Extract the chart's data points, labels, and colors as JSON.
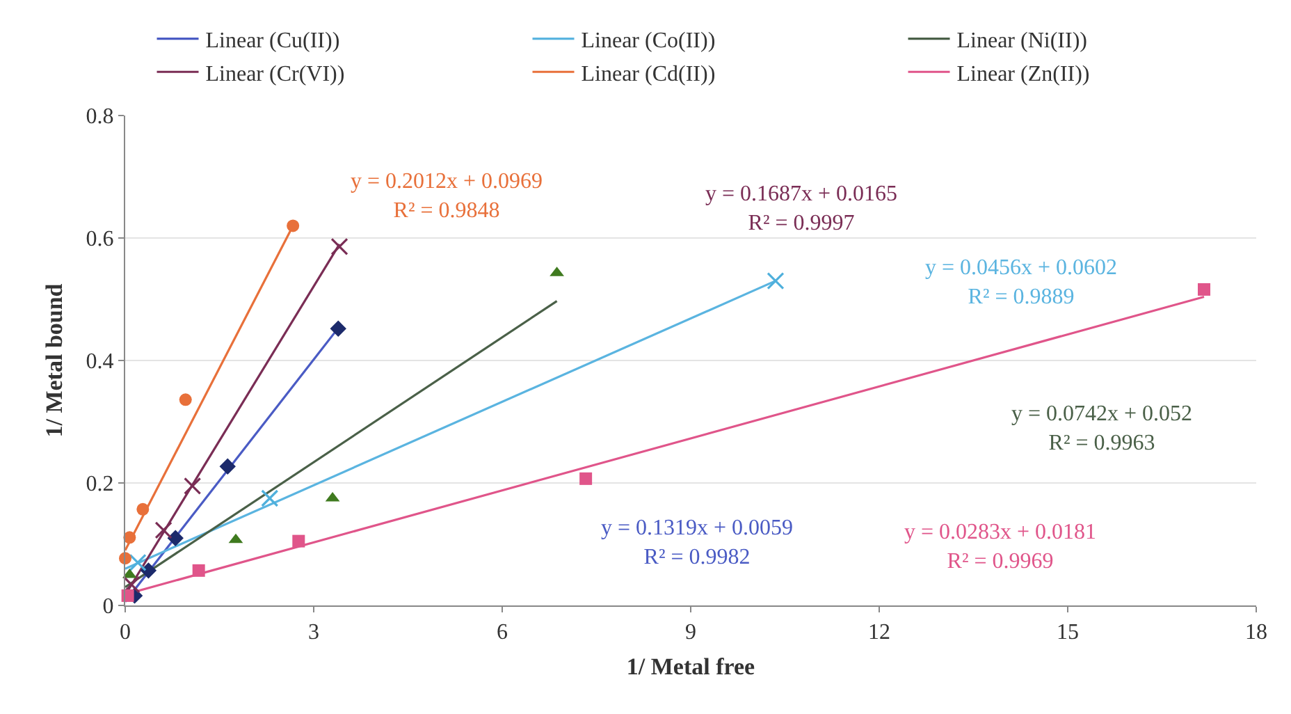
{
  "chart_data": {
    "type": "scatter",
    "xlabel": "1/ Metal free",
    "ylabel": "1/ Metal bound",
    "xlim": [
      0,
      18
    ],
    "xticks": [
      0,
      3,
      6,
      9,
      12,
      15,
      18
    ],
    "ylim": [
      0,
      0.8
    ],
    "yticks": [
      0,
      0.2,
      0.4,
      0.6,
      0.8
    ],
    "grid": "y",
    "legend": "top",
    "series": [
      {
        "color": "#1c2a6b",
        "marker": "diamond",
        "x": [
          0.15,
          0.37,
          0.8,
          1.63,
          3.39
        ],
        "values": [
          0.016,
          0.057,
          0.11,
          0.227,
          0.452
        ]
      },
      {
        "color": "#4fb0dc",
        "marker": "cross",
        "x": [
          0.2,
          2.3,
          10.35
        ],
        "values": [
          0.07,
          0.175,
          0.53
        ]
      },
      {
        "color": "#3f7a1f",
        "marker": "triangle",
        "x": [
          0.07,
          1.76,
          3.3,
          6.87
        ],
        "values": [
          0.05,
          0.107,
          0.175,
          0.543
        ]
      },
      {
        "color": "#7a2d55",
        "marker": "cross",
        "x": [
          0.1,
          0.61,
          1.07,
          3.41
        ],
        "values": [
          0.034,
          0.123,
          0.195,
          0.586
        ]
      },
      {
        "color": "#e8703a",
        "marker": "circle",
        "x": [
          0,
          0.07,
          0.28,
          0.96,
          2.67
        ],
        "values": [
          0.077,
          0.111,
          0.157,
          0.336,
          0.62
        ]
      },
      {
        "color": "#e0558a",
        "marker": "square",
        "x": [
          0.04,
          1.17,
          2.76,
          7.33,
          17.17
        ],
        "values": [
          0.016,
          0.057,
          0.105,
          0.207,
          0.516
        ]
      },
      {
        "name": "Linear (Cu(II))",
        "type": "line",
        "color": "#4a5bc4",
        "x": [
          0,
          3.39
        ],
        "values": [
          0.006,
          0.453
        ]
      },
      {
        "name": "Linear (Co(II))",
        "type": "line",
        "color": "#5ab4e0",
        "x": [
          0,
          10.35
        ],
        "values": [
          0.06,
          0.53
        ]
      },
      {
        "name": "Linear (Ni(II))",
        "type": "line",
        "color": "#4a6048",
        "x": [
          0,
          6.87
        ],
        "values": [
          0.03,
          0.497
        ]
      },
      {
        "name": "Linear (Cr(VI))",
        "type": "line",
        "color": "#7a2d55",
        "x": [
          0,
          3.41
        ],
        "values": [
          0.017,
          0.59
        ]
      },
      {
        "name": "Linear (Cd(II))",
        "type": "line",
        "color": "#e8703a",
        "x": [
          0,
          2.67
        ],
        "values": [
          0.09,
          0.62
        ]
      },
      {
        "name": "Linear (Zn(II))",
        "type": "line",
        "color": "#e0558a",
        "x": [
          0,
          17.17
        ],
        "values": [
          0.018,
          0.504
        ]
      }
    ],
    "annotations": [
      "y = 0.1319x + 0.0059\nR² = 0.9982",
      "y = 0.0456x + 0.0602\nR² = 0.9889",
      "y = 0.0742x + 0.052\nR² = 0.9963",
      "y = 0.1687x + 0.0165\nR² = 0.9997",
      "y = 0.2012x + 0.0969\nR² = 0.9848",
      "y = 0.0283x + 0.0181\nR² = 0.9969"
    ]
  }
}
